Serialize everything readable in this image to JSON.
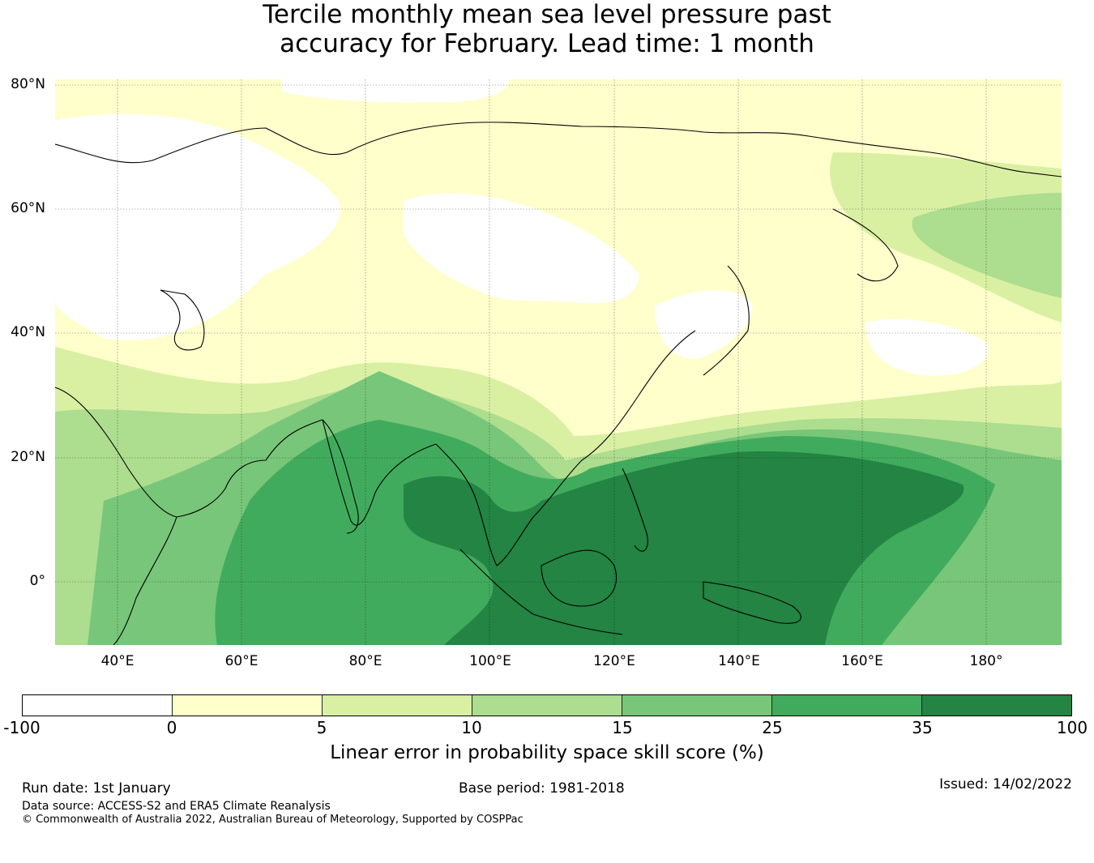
{
  "title": {
    "line1": "Tercile monthly mean sea level pressure past",
    "line2": "accuracy for February. Lead time: 1 month"
  },
  "map": {
    "lat_labels": [
      "80°N",
      "60°N",
      "40°N",
      "20°N",
      "0°"
    ],
    "lon_labels": [
      "40°E",
      "60°E",
      "80°E",
      "100°E",
      "120°E",
      "140°E",
      "160°E",
      "180°"
    ],
    "lat_range": [
      -10,
      81
    ],
    "lon_range": [
      30,
      192
    ]
  },
  "colorbar": {
    "ticks": [
      "-100",
      "0",
      "5",
      "10",
      "15",
      "25",
      "35",
      "100"
    ],
    "colors": [
      "#ffffff",
      "#ffffcc",
      "#d9f0a3",
      "#addd8e",
      "#78c679",
      "#41ab5d",
      "#238443"
    ],
    "label": "Linear error in probability space skill score (%)"
  },
  "footer": {
    "run_date": "Run date: 1st January",
    "base_period": "Base period: 1981-2018",
    "issued": "Issued: 14/02/2022",
    "data_source": "Data source: ACCESS-S2 and ERA5 Climate Reanalysis",
    "copyright": "© Commonwealth of Australia 2022, Australian Bureau of Meteorology, Supported by COSPPac"
  }
}
